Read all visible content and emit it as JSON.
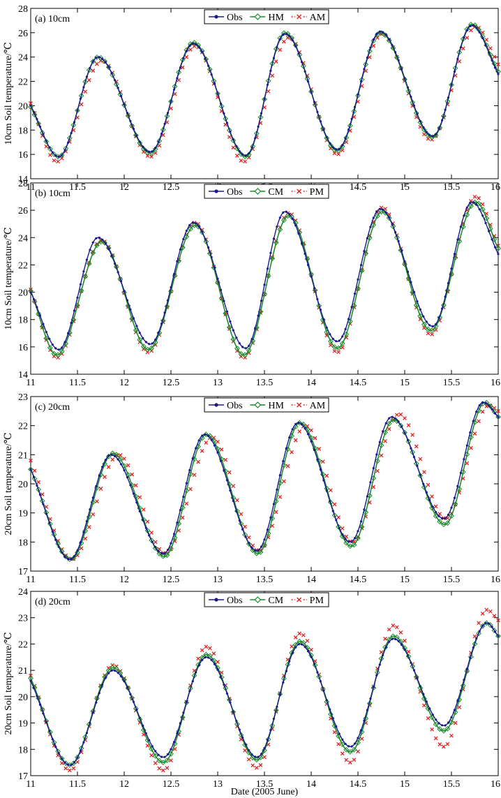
{
  "figure": {
    "xlabel": "Date (2005 June)",
    "colors": {
      "obs": "#1a1a8c",
      "model_a": "#1a8a2a",
      "model_b": "#e02020"
    }
  },
  "chart_data": [
    {
      "type": "line",
      "panel_label": "(a) 10cm",
      "ylabel": "10cm Soil temperature/℃",
      "xlim": [
        11,
        16
      ],
      "ylim": [
        14,
        28
      ],
      "xticks": [
        "11",
        "11.5",
        "12",
        "12.5",
        "13",
        "13.5",
        "14",
        "14.5",
        "15",
        "15.5",
        "16"
      ],
      "yticks": [
        "14",
        "16",
        "18",
        "20",
        "22",
        "24",
        "26",
        "28"
      ],
      "legend": [
        "Obs",
        "HM",
        "AM"
      ],
      "legend_position": "top-center",
      "series": [
        {
          "name": "Obs",
          "marker": "dot",
          "x": [
            11.0,
            11.3,
            11.72,
            12.28,
            12.74,
            13.3,
            13.72,
            14.28,
            14.74,
            15.3,
            15.72,
            16.0
          ],
          "y": [
            20.0,
            15.8,
            24.0,
            16.2,
            25.1,
            15.9,
            25.9,
            16.4,
            26.1,
            17.5,
            26.6,
            22.6
          ]
        },
        {
          "name": "HM",
          "marker": "diamond",
          "x": [
            11.0,
            11.3,
            11.72,
            12.28,
            12.74,
            13.3,
            13.72,
            14.28,
            14.74,
            15.3,
            15.72,
            16.0
          ],
          "y": [
            19.9,
            15.8,
            24.0,
            16.1,
            25.2,
            15.8,
            26.0,
            16.3,
            26.0,
            17.4,
            26.7,
            22.8
          ]
        },
        {
          "name": "AM",
          "marker": "x",
          "x": [
            11.0,
            11.28,
            11.76,
            12.28,
            12.76,
            13.28,
            13.76,
            14.28,
            14.76,
            15.28,
            15.76,
            16.0
          ],
          "y": [
            20.2,
            15.4,
            23.7,
            15.8,
            24.9,
            15.4,
            25.6,
            16.0,
            25.9,
            17.2,
            26.5,
            23.4
          ]
        }
      ]
    },
    {
      "type": "line",
      "panel_label": "(b) 10cm",
      "ylabel": "10cm Soil temperature/℃",
      "xlim": [
        11,
        16
      ],
      "ylim": [
        14,
        28
      ],
      "xticks": [
        "11",
        "11.5",
        "12",
        "12.5",
        "13",
        "13.5",
        "14",
        "14.5",
        "15",
        "15.5",
        "16"
      ],
      "yticks": [
        "14",
        "16",
        "18",
        "20",
        "22",
        "24",
        "26",
        "28"
      ],
      "legend": [
        "Obs",
        "CM",
        "PM"
      ],
      "legend_position": "top-center",
      "series": [
        {
          "name": "Obs",
          "marker": "dot",
          "x": [
            11.0,
            11.3,
            11.72,
            12.28,
            12.74,
            13.3,
            13.72,
            14.28,
            14.74,
            15.3,
            15.72,
            16.0
          ],
          "y": [
            20.0,
            15.8,
            24.0,
            16.2,
            25.1,
            15.9,
            25.9,
            16.4,
            26.1,
            17.5,
            26.6,
            22.8
          ]
        },
        {
          "name": "CM",
          "marker": "diamond",
          "x": [
            11.0,
            11.28,
            11.76,
            12.26,
            12.76,
            13.28,
            13.76,
            14.28,
            14.76,
            15.28,
            15.76,
            16.0
          ],
          "y": [
            20.1,
            15.4,
            23.7,
            15.8,
            24.9,
            15.4,
            25.6,
            15.9,
            25.9,
            17.2,
            26.6,
            23.2
          ]
        },
        {
          "name": "PM",
          "marker": "x",
          "x": [
            11.0,
            11.28,
            11.76,
            12.26,
            12.76,
            13.28,
            13.76,
            14.28,
            14.76,
            15.28,
            15.76,
            16.0
          ],
          "y": [
            20.2,
            15.2,
            23.8,
            15.6,
            25.1,
            15.2,
            25.8,
            15.6,
            26.2,
            16.9,
            27.0,
            23.4
          ]
        }
      ]
    },
    {
      "type": "line",
      "panel_label": "(c) 20cm",
      "ylabel": "20cm Soil temperature/℃",
      "xlim": [
        11,
        16
      ],
      "ylim": [
        17,
        23
      ],
      "xticks": [
        "11",
        "11.5",
        "12",
        "12.5",
        "13",
        "13.5",
        "14",
        "14.5",
        "15",
        "15.5",
        "16"
      ],
      "yticks": [
        "17",
        "18",
        "19",
        "20",
        "21",
        "22",
        "23"
      ],
      "legend": [
        "Obs",
        "HM",
        "AM"
      ],
      "legend_position": "top-center",
      "series": [
        {
          "name": "Obs",
          "marker": "dot",
          "x": [
            11.0,
            11.42,
            11.86,
            12.42,
            12.86,
            13.42,
            13.86,
            14.42,
            14.86,
            15.42,
            15.84,
            16.0
          ],
          "y": [
            20.5,
            17.4,
            21.0,
            17.6,
            21.7,
            17.7,
            22.1,
            18.0,
            22.3,
            18.8,
            22.8,
            22.3
          ]
        },
        {
          "name": "HM",
          "marker": "diamond",
          "x": [
            11.0,
            11.43,
            11.88,
            12.43,
            12.88,
            13.43,
            13.88,
            14.43,
            14.88,
            15.43,
            15.86,
            16.0
          ],
          "y": [
            20.5,
            17.4,
            21.05,
            17.5,
            21.7,
            17.6,
            22.1,
            17.85,
            22.2,
            18.6,
            22.8,
            22.3
          ]
        },
        {
          "name": "AM",
          "marker": "x",
          "x": [
            11.0,
            11.44,
            11.94,
            12.44,
            12.94,
            13.44,
            13.94,
            14.44,
            14.94,
            15.44,
            15.9,
            16.0
          ],
          "y": [
            20.8,
            17.4,
            21.0,
            17.6,
            21.6,
            17.7,
            22.0,
            18.0,
            22.4,
            18.8,
            22.7,
            22.5
          ]
        }
      ]
    },
    {
      "type": "line",
      "panel_label": "(d) 20cm",
      "ylabel": "20cm Soil temperature/℃",
      "xlim": [
        11,
        16
      ],
      "ylim": [
        17,
        24
      ],
      "xticks": [
        "11",
        "11.5",
        "12",
        "12.5",
        "13",
        "13.5",
        "14",
        "14.5",
        "15",
        "15.5",
        "16"
      ],
      "yticks": [
        "17",
        "18",
        "19",
        "20",
        "21",
        "22",
        "23",
        "24"
      ],
      "legend": [
        "Obs",
        "CM",
        "PM"
      ],
      "legend_position": "top-center",
      "series": [
        {
          "name": "Obs",
          "marker": "dot",
          "x": [
            11.0,
            11.42,
            11.88,
            12.42,
            12.88,
            13.42,
            13.88,
            14.42,
            14.88,
            15.42,
            15.88,
            16.0
          ],
          "y": [
            20.6,
            17.4,
            21.0,
            17.7,
            21.5,
            17.7,
            22.0,
            18.1,
            22.2,
            18.9,
            22.8,
            22.3
          ]
        },
        {
          "name": "CM",
          "marker": "diamond",
          "x": [
            11.0,
            11.42,
            11.88,
            12.42,
            12.88,
            13.42,
            13.88,
            14.42,
            14.88,
            15.42,
            15.88,
            16.0
          ],
          "y": [
            20.7,
            17.4,
            21.1,
            17.5,
            21.6,
            17.6,
            22.1,
            17.9,
            22.3,
            18.7,
            22.8,
            22.3
          ]
        },
        {
          "name": "PM",
          "marker": "x",
          "x": [
            11.0,
            11.42,
            11.88,
            12.42,
            12.88,
            13.42,
            13.88,
            14.42,
            14.88,
            15.42,
            15.88,
            16.0
          ],
          "y": [
            20.8,
            17.2,
            21.2,
            17.2,
            21.9,
            17.3,
            22.4,
            17.5,
            22.7,
            18.1,
            23.3,
            22.9
          ]
        }
      ]
    }
  ]
}
